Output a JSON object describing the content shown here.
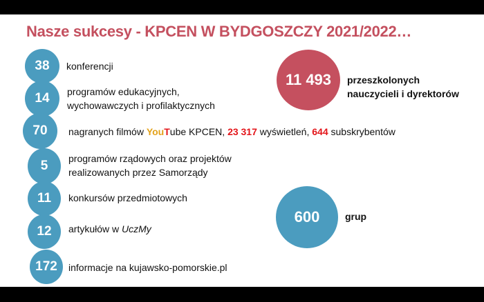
{
  "title": "Nasze sukcesy - KPCEN W BYDGOSZCZY 2021/2022…",
  "items": [
    {
      "value": "38",
      "label": "konferencji"
    },
    {
      "value": "14",
      "label_line1": "programów edukacyjnych,",
      "label_line2": "wychowawczych i profilaktycznych"
    },
    {
      "value": "70",
      "label_a": "nagranych filmów ",
      "label_you": "You",
      "label_t": "T",
      "label_ube": "ube KPCEN, ",
      "views": "23 317",
      "label_b": " wyświetleń, ",
      "subs": "644",
      "label_c": " subskrybentów"
    },
    {
      "value": "5",
      "label_line1": "programów rządowych oraz projektów",
      "label_line2": "realizowanych przez Samorządy"
    },
    {
      "value": "11",
      "label": "konkursów przedmiotowych"
    },
    {
      "value": "12",
      "label": "artykułów w ",
      "label_italic": "UczMy"
    },
    {
      "value": "172",
      "label": "informacje na kujawsko-pomorskie.pl"
    }
  ],
  "highlights": [
    {
      "value": "11 493",
      "label_line1": "przeszkolonych",
      "label_line2": "nauczycieli i dyrektorów"
    },
    {
      "value": "600",
      "label": "grup"
    }
  ],
  "colors": {
    "title": "#c4505f",
    "blue_circle": "#4b9cbf",
    "red_circle": "#c5505f",
    "highlight": "#e3151a"
  }
}
